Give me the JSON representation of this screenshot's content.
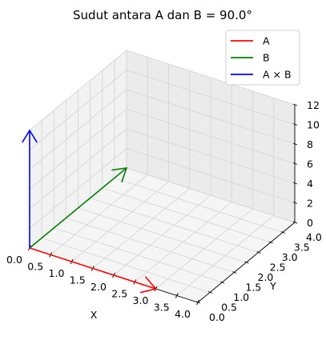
{
  "chart_data": {
    "type": "line",
    "projection": "3d",
    "title": "Sudut antara A dan B = 90.0°",
    "xlabel": "X",
    "ylabel": "Y",
    "zlabel": "",
    "xlim": [
      0,
      4
    ],
    "ylim": [
      0,
      4
    ],
    "zlim": [
      0,
      12
    ],
    "xticks": [
      "0.0",
      "0.5",
      "1.0",
      "1.5",
      "2.0",
      "2.5",
      "3.0",
      "3.5",
      "4.0"
    ],
    "yticks": [
      "0.0",
      "0.5",
      "1.0",
      "1.5",
      "2.0",
      "2.5",
      "3.0",
      "3.5",
      "4.0"
    ],
    "zticks": [
      "0",
      "2",
      "4",
      "6",
      "8",
      "10",
      "12"
    ],
    "grid": true,
    "legend_position": "top-right",
    "series": [
      {
        "name": "A",
        "color": "#ff0000",
        "start": [
          0,
          0,
          0
        ],
        "end": [
          3,
          0,
          0
        ]
      },
      {
        "name": "B",
        "color": "#008000",
        "start": [
          0,
          0,
          0
        ],
        "end": [
          0,
          4,
          0
        ]
      },
      {
        "name": "A × B",
        "color": "#0000ff",
        "start": [
          0,
          0,
          0
        ],
        "end": [
          0,
          0,
          12
        ]
      }
    ]
  }
}
